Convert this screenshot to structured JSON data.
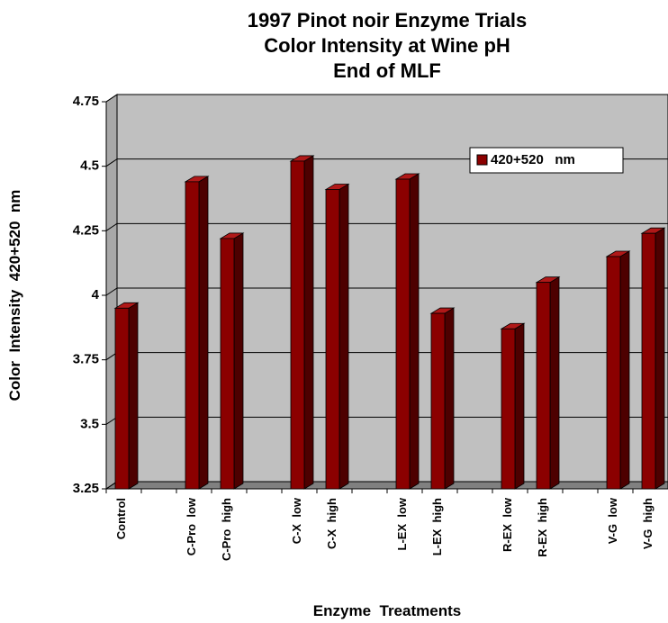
{
  "chart_data": {
    "type": "bar3d",
    "title": [
      "1997 Pinot noir Enzyme Trials",
      "Color Intensity at Wine pH",
      "End of MLF"
    ],
    "y_label": "Color  Intensity  420+520  nm",
    "x_label": "Enzyme  Treatments",
    "categories": [
      "Control",
      null,
      "C-Pro  low",
      "C-Pro  high",
      null,
      "C-X  low",
      "C-X  high",
      null,
      "L-EX  low",
      "L-EX  high",
      null,
      "R-EX  low",
      "R-EX  high",
      null,
      "V-G  low",
      "V-G  high"
    ],
    "series": [
      {
        "name": "420+520   nm",
        "color": "#8b0000",
        "values": [
          3.95,
          null,
          4.44,
          4.22,
          null,
          4.52,
          4.41,
          null,
          4.45,
          3.93,
          null,
          3.87,
          4.05,
          null,
          4.15,
          4.24
        ]
      }
    ],
    "ylim": [
      3.25,
      4.75
    ],
    "yticks": [
      3.25,
      3.5,
      3.75,
      4,
      4.25,
      4.5,
      4.75
    ],
    "grid": true,
    "legend": "upper right",
    "background": "#c0c0c0"
  }
}
